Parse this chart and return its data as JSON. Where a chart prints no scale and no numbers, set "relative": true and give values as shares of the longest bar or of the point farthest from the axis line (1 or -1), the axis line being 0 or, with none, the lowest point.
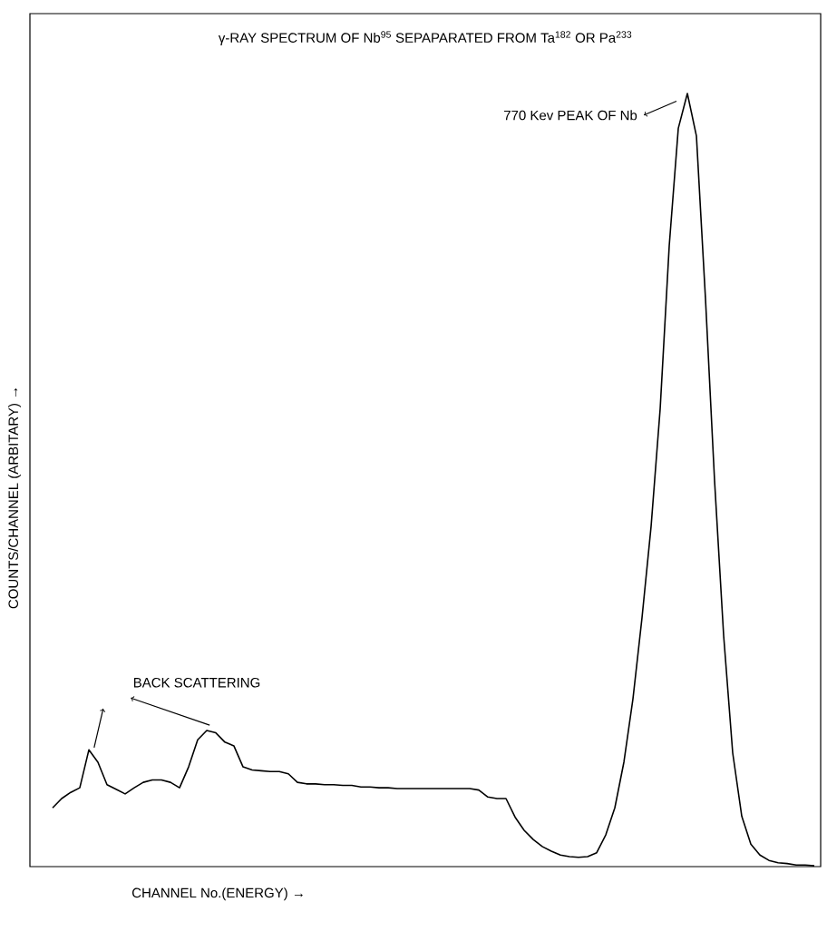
{
  "chart_data": {
    "type": "line",
    "relative": true,
    "title": "γ-RAY SPECTRUM OF Nb$^{95}$ SEPAPARATED FROM Ta$^{182}$ OR Pa$^{233}$",
    "xlabel": "CHANNEL No.(ENERGY) →",
    "ylabel": "COUNTS/CHANNEL (ARBITARY) →",
    "annotations": [
      "770 Kev PEAK OF Nb",
      "BACK SCATTERING"
    ],
    "categories": [
      null,
      null,
      null,
      null,
      null,
      null,
      null,
      null,
      null,
      null,
      null,
      null,
      null,
      null,
      null,
      null,
      null,
      null,
      null,
      null,
      null,
      null,
      null,
      null,
      null,
      null,
      null,
      null,
      null,
      null,
      null,
      null,
      null,
      null,
      null,
      null,
      null,
      null,
      null,
      null,
      null,
      null,
      null,
      null,
      null,
      null,
      null,
      null,
      null,
      null,
      null,
      null,
      null,
      null,
      null,
      null,
      null,
      null,
      null,
      null,
      null,
      null,
      null,
      null,
      null,
      null,
      null,
      null,
      null,
      null,
      null,
      null,
      null,
      null,
      null,
      null,
      null,
      null,
      null,
      null,
      null,
      null,
      null,
      null,
      null
    ],
    "color": "#000000",
    "marker": "none",
    "line_style": "solid",
    "values": [
      0.076,
      0.088,
      0.096,
      0.102,
      0.151,
      0.135,
      0.106,
      0.1,
      0.094,
      0.102,
      0.109,
      0.112,
      0.112,
      0.109,
      0.102,
      0.129,
      0.164,
      0.176,
      0.173,
      0.161,
      0.156,
      0.129,
      0.125,
      0.124,
      0.123,
      0.123,
      0.12,
      0.109,
      0.107,
      0.107,
      0.106,
      0.106,
      0.105,
      0.105,
      0.103,
      0.103,
      0.102,
      0.102,
      0.101,
      0.101,
      0.101,
      0.101,
      0.101,
      0.101,
      0.101,
      0.101,
      0.101,
      0.099,
      0.09,
      0.088,
      0.088,
      0.064,
      0.047,
      0.035,
      0.026,
      0.02,
      0.015,
      0.013,
      0.012,
      0.013,
      0.018,
      0.041,
      0.076,
      0.135,
      0.217,
      0.322,
      0.44,
      0.592,
      0.803,
      0.955,
      1,
      0.945,
      0.734,
      0.499,
      0.299,
      0.147,
      0.065,
      0.029,
      0.015,
      0.008,
      0.005,
      0.004,
      0.002,
      0.002,
      0.001
    ]
  }
}
